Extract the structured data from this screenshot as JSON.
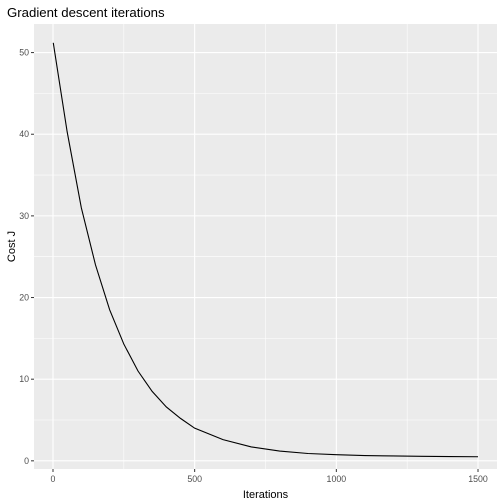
{
  "chart_data": {
    "type": "line",
    "title": "Gradient descent iterations",
    "xlabel": "Iterations",
    "ylabel": "Cost J",
    "xlim": [
      -67,
      1567
    ],
    "ylim": [
      -1.0,
      53.5
    ],
    "x_ticks": [
      0,
      500,
      1000,
      1500
    ],
    "x_tick_labels": [
      "0",
      "500",
      "1000",
      "1500"
    ],
    "y_ticks": [
      0,
      10,
      20,
      30,
      40,
      50
    ],
    "y_tick_labels": [
      "0",
      "10",
      "20",
      "30",
      "40",
      "50"
    ],
    "grid": true,
    "legend": "none",
    "colors": {
      "panel": "#ebebeb",
      "grid": "#ffffff",
      "line": "#000000"
    },
    "series": [
      {
        "x": [
          1,
          50,
          100,
          150,
          200,
          250,
          300,
          350,
          400,
          450,
          500,
          600,
          700,
          800,
          900,
          1000,
          1100,
          1200,
          1300,
          1400,
          1500
        ],
        "y": [
          51.2,
          40.3,
          31.0,
          24.0,
          18.5,
          14.3,
          11.0,
          8.5,
          6.6,
          5.2,
          4.0,
          2.6,
          1.7,
          1.2,
          0.9,
          0.75,
          0.65,
          0.6,
          0.55,
          0.52,
          0.5
        ]
      }
    ]
  }
}
